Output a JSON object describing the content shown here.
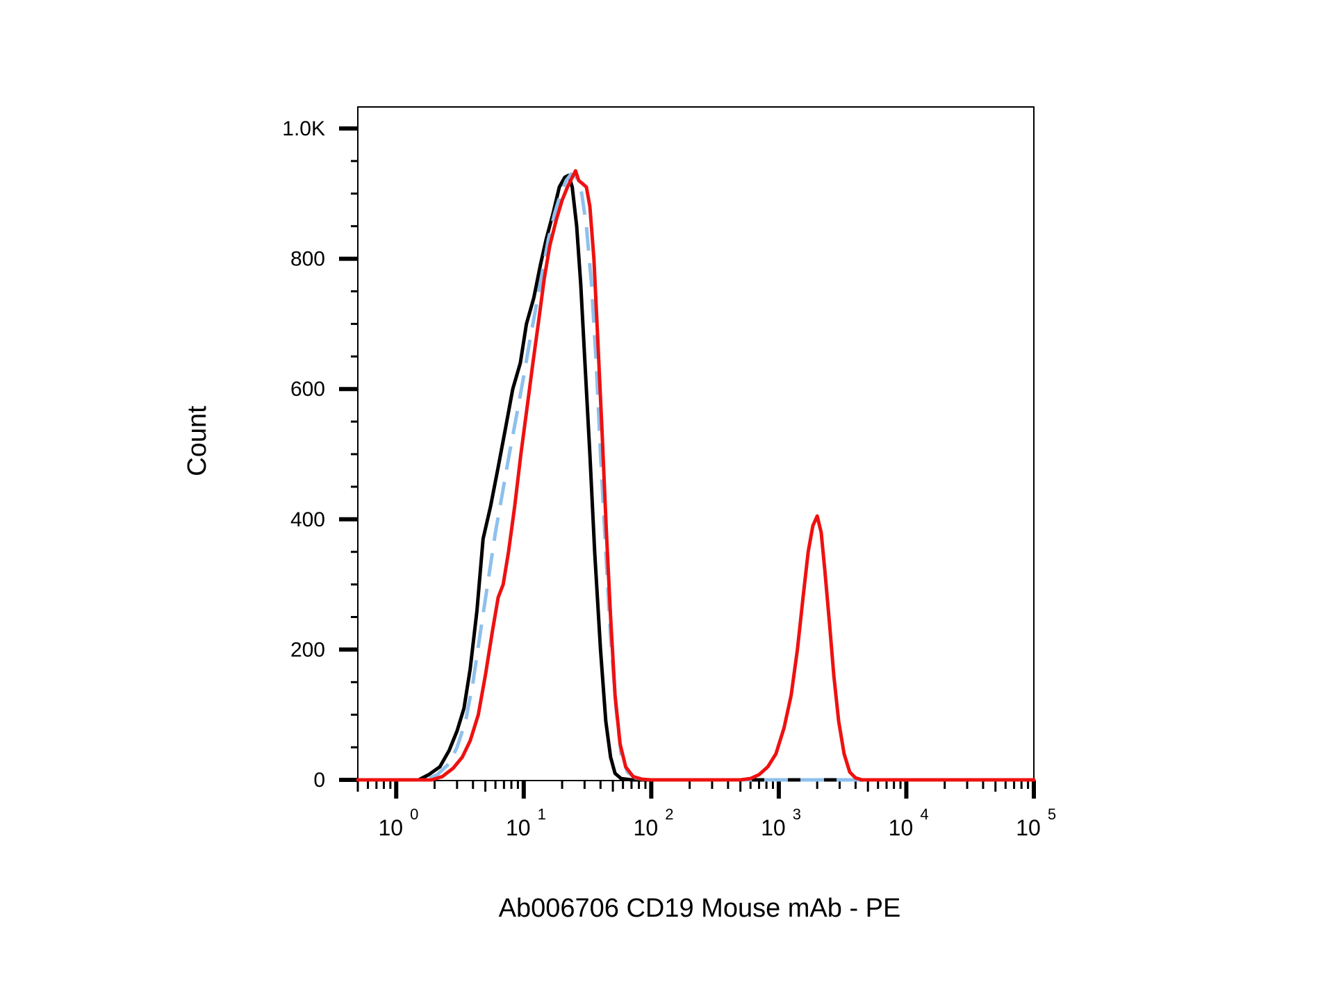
{
  "chart_data": {
    "type": "line",
    "title": "",
    "xlabel": "Ab006706 CD19 Mouse mAb - PE",
    "ylabel": "Count",
    "x_scale": "log",
    "xlim": [
      0.5,
      100000
    ],
    "ylim": [
      0,
      1000
    ],
    "y_ticks": [
      0,
      200,
      400,
      600,
      800,
      1000
    ],
    "y_tick_labels": [
      "0",
      "200",
      "400",
      "600",
      "800",
      "1.0K"
    ],
    "x_ticks": [
      1,
      10,
      100,
      1000,
      10000,
      100000
    ],
    "x_tick_labels": [
      {
        "base": "10",
        "exp": "0"
      },
      {
        "base": "10",
        "exp": "1"
      },
      {
        "base": "10",
        "exp": "2"
      },
      {
        "base": "10",
        "exp": "3"
      },
      {
        "base": "10",
        "exp": "4"
      },
      {
        "base": "10",
        "exp": "5"
      }
    ],
    "grid": false,
    "legend": "none",
    "series": [
      {
        "color": "#000000",
        "style": "solid",
        "points": [
          [
            0.5,
            0
          ],
          [
            1.5,
            0
          ],
          [
            1.8,
            8
          ],
          [
            2.2,
            20
          ],
          [
            2.6,
            45
          ],
          [
            3.0,
            75
          ],
          [
            3.4,
            110
          ],
          [
            3.8,
            170
          ],
          [
            4.3,
            260
          ],
          [
            4.8,
            370
          ],
          [
            5.5,
            420
          ],
          [
            6.3,
            480
          ],
          [
            7.2,
            540
          ],
          [
            8.2,
            600
          ],
          [
            9.4,
            640
          ],
          [
            10.5,
            700
          ],
          [
            12,
            740
          ],
          [
            13.5,
            790
          ],
          [
            15,
            830
          ],
          [
            17,
            870
          ],
          [
            19,
            910
          ],
          [
            21,
            925
          ],
          [
            22.5,
            928
          ],
          [
            24,
            910
          ],
          [
            26,
            850
          ],
          [
            28,
            760
          ],
          [
            30,
            650
          ],
          [
            33,
            500
          ],
          [
            36,
            350
          ],
          [
            40,
            200
          ],
          [
            44,
            90
          ],
          [
            48,
            35
          ],
          [
            52,
            10
          ],
          [
            58,
            2
          ],
          [
            70,
            0
          ],
          [
            100000,
            0
          ]
        ]
      },
      {
        "color": "#8ec0ec",
        "style": "dashed",
        "points": [
          [
            0.5,
            0
          ],
          [
            1.7,
            0
          ],
          [
            2.1,
            8
          ],
          [
            2.6,
            25
          ],
          [
            3.0,
            50
          ],
          [
            3.5,
            90
          ],
          [
            4.0,
            150
          ],
          [
            4.6,
            230
          ],
          [
            5.3,
            310
          ],
          [
            6.0,
            380
          ],
          [
            6.8,
            440
          ],
          [
            7.7,
            500
          ],
          [
            8.8,
            560
          ],
          [
            10,
            620
          ],
          [
            11.3,
            680
          ],
          [
            12.6,
            730
          ],
          [
            14,
            780
          ],
          [
            15.6,
            830
          ],
          [
            17.5,
            870
          ],
          [
            19.5,
            900
          ],
          [
            21.5,
            920
          ],
          [
            23.5,
            930
          ],
          [
            26,
            925
          ],
          [
            28.5,
            900
          ],
          [
            31,
            850
          ],
          [
            34,
            760
          ],
          [
            37,
            640
          ],
          [
            40,
            500
          ],
          [
            44,
            350
          ],
          [
            48,
            220
          ],
          [
            53,
            110
          ],
          [
            58,
            40
          ],
          [
            65,
            12
          ],
          [
            75,
            3
          ],
          [
            90,
            0
          ],
          [
            100000,
            0
          ]
        ]
      },
      {
        "color": "#ee1111",
        "style": "solid",
        "points": [
          [
            0.5,
            0
          ],
          [
            1.9,
            0
          ],
          [
            2.3,
            5
          ],
          [
            2.8,
            18
          ],
          [
            3.3,
            35
          ],
          [
            3.8,
            60
          ],
          [
            4.4,
            100
          ],
          [
            5.0,
            160
          ],
          [
            5.7,
            230
          ],
          [
            6.3,
            280
          ],
          [
            6.9,
            300
          ],
          [
            7.6,
            350
          ],
          [
            8.5,
            420
          ],
          [
            9.5,
            500
          ],
          [
            10.6,
            570
          ],
          [
            11.8,
            640
          ],
          [
            13,
            700
          ],
          [
            14.5,
            770
          ],
          [
            16,
            820
          ],
          [
            18,
            860
          ],
          [
            20,
            890
          ],
          [
            22,
            910
          ],
          [
            24,
            925
          ],
          [
            25.5,
            935
          ],
          [
            27,
            920
          ],
          [
            29,
            915
          ],
          [
            31,
            910
          ],
          [
            33,
            880
          ],
          [
            35.5,
            800
          ],
          [
            38,
            680
          ],
          [
            41,
            540
          ],
          [
            44.5,
            380
          ],
          [
            48,
            250
          ],
          [
            52,
            130
          ],
          [
            57,
            55
          ],
          [
            63,
            20
          ],
          [
            72,
            5
          ],
          [
            85,
            1
          ],
          [
            100,
            0
          ],
          [
            500,
            0
          ],
          [
            600,
            2
          ],
          [
            700,
            8
          ],
          [
            820,
            20
          ],
          [
            950,
            40
          ],
          [
            1100,
            80
          ],
          [
            1250,
            130
          ],
          [
            1400,
            200
          ],
          [
            1550,
            280
          ],
          [
            1700,
            350
          ],
          [
            1850,
            390
          ],
          [
            2000,
            405
          ],
          [
            2150,
            380
          ],
          [
            2300,
            320
          ],
          [
            2500,
            240
          ],
          [
            2700,
            160
          ],
          [
            2950,
            90
          ],
          [
            3250,
            40
          ],
          [
            3600,
            12
          ],
          [
            4000,
            3
          ],
          [
            4500,
            0
          ],
          [
            100000,
            0
          ]
        ]
      }
    ]
  }
}
